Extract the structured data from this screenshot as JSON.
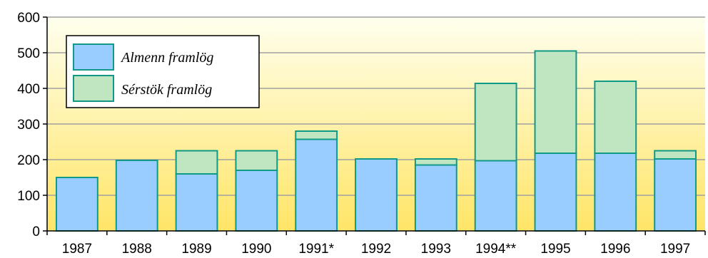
{
  "chart_data": {
    "type": "bar",
    "stacked": true,
    "categories": [
      "1987",
      "1988",
      "1989",
      "1990",
      "1991*",
      "1992",
      "1993",
      "1994**",
      "1995",
      "1996",
      "1997"
    ],
    "series": [
      {
        "name": "Almenn framlög",
        "values": [
          150,
          198,
          160,
          170,
          257,
          202,
          185,
          197,
          218,
          218,
          202
        ],
        "color": "#99ccff"
      },
      {
        "name": "Sérstök framlög",
        "values": [
          0,
          0,
          65,
          55,
          23,
          0,
          17,
          217,
          287,
          202,
          23
        ],
        "color": "#bfe6c0"
      }
    ],
    "ylim": [
      0,
      600
    ],
    "yticks": [
      0,
      100,
      200,
      300,
      400,
      500,
      600
    ],
    "grid": true,
    "legend_position": "top-left",
    "bar_edge_color": "#119988",
    "background_gradient": [
      "#ffe566",
      "#ffffee"
    ]
  }
}
